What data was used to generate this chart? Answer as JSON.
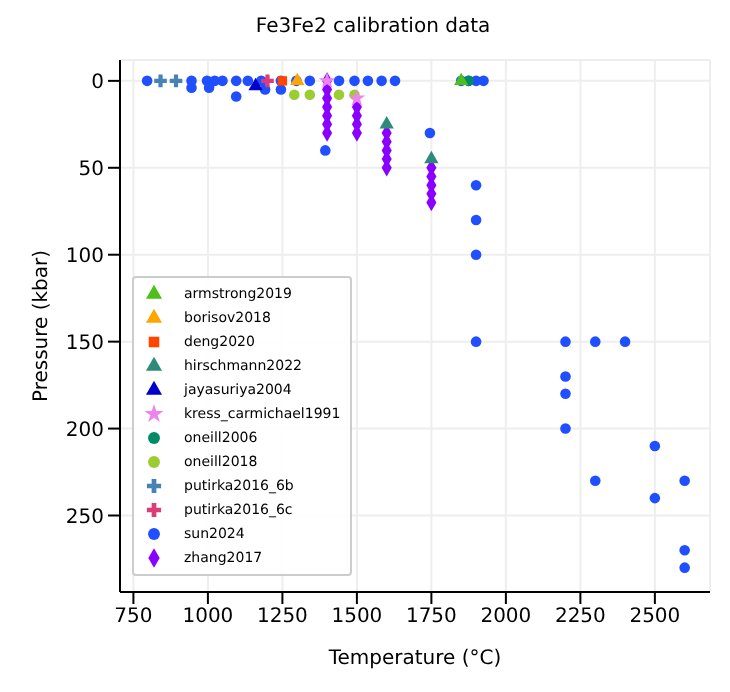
{
  "chart_data": {
    "type": "scatter",
    "title": "Fe3Fe2 calibration data",
    "xlabel": "Temperature (°C)",
    "ylabel": "Pressure (kbar)",
    "xlim": [
      705,
      2685
    ],
    "ylim": [
      294,
      -12
    ],
    "xticks": [
      750,
      1000,
      1250,
      1500,
      1750,
      2000,
      2250,
      2500
    ],
    "yticks": [
      0,
      50,
      100,
      150,
      200,
      250
    ],
    "grid": true,
    "legend": "bottom left",
    "series": [
      {
        "name": "armstrong2019",
        "color": "#4dbf1a",
        "marker": "triangle",
        "x": [
          1850
        ],
        "values": [
          0
        ]
      },
      {
        "name": "borisov2018",
        "color": "#ffa500",
        "marker": "triangle",
        "x": [
          1300
        ],
        "values": [
          0
        ]
      },
      {
        "name": "deng2020",
        "color": "#ff4500",
        "marker": "square",
        "x": [
          1250
        ],
        "values": [
          0
        ]
      },
      {
        "name": "hirschmann2022",
        "color": "#2e8b7a",
        "marker": "triangle",
        "x": [
          1600,
          1750
        ],
        "values": [
          25,
          45
        ]
      },
      {
        "name": "jayasuriya2004",
        "color": "#0000cd",
        "marker": "triangle",
        "x": [
          1160
        ],
        "values": [
          3
        ]
      },
      {
        "name": "kress_carmichael1991",
        "color": "#ee82ee",
        "marker": "star",
        "x": [
          1400,
          1500
        ],
        "values": [
          0,
          10
        ]
      },
      {
        "name": "oneill2006",
        "color": "#008b66",
        "marker": "circle",
        "x": [
          1875
        ],
        "values": [
          0
        ]
      },
      {
        "name": "oneill2018",
        "color": "#9acd32",
        "marker": "circle",
        "x": [
          1290,
          1342,
          1440,
          1492
        ],
        "values": [
          8,
          8,
          8,
          8
        ]
      },
      {
        "name": "putirka2016_6b",
        "color": "#4682b4",
        "marker": "cross",
        "x": [
          841,
          893
        ],
        "values": [
          0,
          0
        ]
      },
      {
        "name": "putirka2016_6c",
        "color": "#dc3c78",
        "marker": "cross",
        "x": [
          1200
        ],
        "values": [
          0
        ]
      },
      {
        "name": "sun2024",
        "color": "#1f4fff",
        "marker": "circle",
        "x": [
          796,
          945,
          997,
          1023,
          1049,
          1095,
          1134,
          1179,
          1245,
          1297,
          1342,
          1440,
          1492,
          1537,
          1583,
          1628,
          1850,
          1875,
          1900,
          1925,
          945,
          1004,
          1095,
          1192,
          1245,
          1394,
          1745,
          1900,
          1900,
          1900,
          1900,
          2200,
          2300,
          2400,
          2200,
          2200,
          2200,
          2500,
          2300,
          2600,
          2500,
          2600,
          2600
        ],
        "values": [
          0,
          0,
          0,
          0,
          0,
          0,
          0,
          0,
          0,
          0,
          0,
          0,
          0,
          0,
          0,
          0,
          0,
          0,
          0,
          0,
          4,
          4,
          9,
          5,
          5,
          40,
          30,
          60,
          80,
          100,
          150,
          150,
          150,
          150,
          170,
          180,
          200,
          210,
          230,
          230,
          240,
          270,
          280
        ]
      },
      {
        "name": "zhang2017",
        "color": "#8a00ff",
        "marker": "diamond",
        "x": [
          1400,
          1400,
          1400,
          1400,
          1400,
          1400,
          1400,
          1500,
          1500,
          1500,
          1500,
          1600,
          1600,
          1600,
          1600,
          1600,
          1750,
          1750,
          1750,
          1750,
          1750
        ],
        "values": [
          0,
          5,
          10,
          15,
          20,
          25,
          30,
          15,
          20,
          25,
          30,
          30,
          35,
          40,
          45,
          50,
          50,
          55,
          60,
          65,
          70
        ]
      }
    ]
  }
}
